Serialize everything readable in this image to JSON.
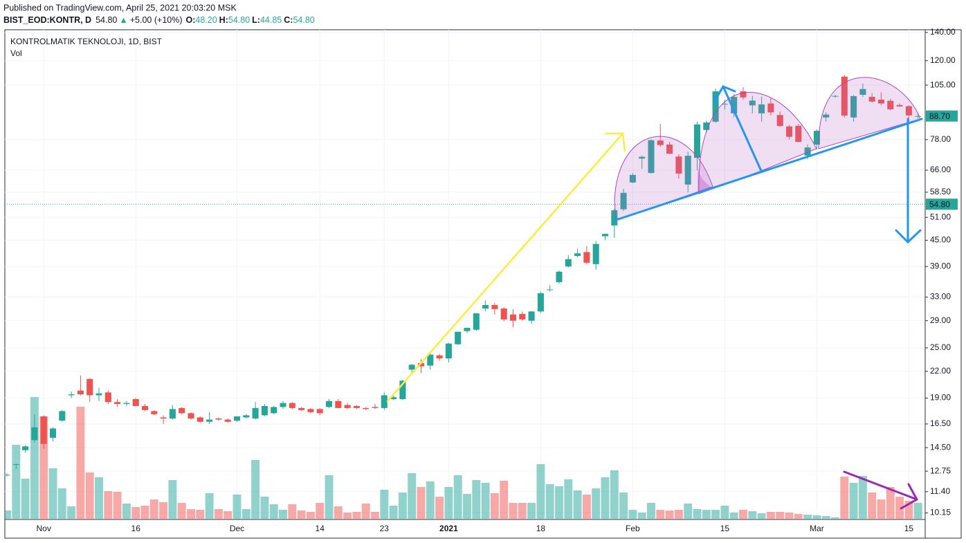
{
  "header": {
    "published": "Published on TradingView.com, April 25, 2021 20:03:20 MSK",
    "symbol": "BIST_EOD:KONTR, D",
    "price": "54.80",
    "arrow": "▲",
    "change": "+5.00 (+10%)",
    "ohlc": [
      [
        "O:",
        "48.20"
      ],
      [
        "H:",
        "54.80"
      ],
      [
        "L:",
        "44.85"
      ],
      [
        "C:",
        "54.80"
      ]
    ]
  },
  "chart_data": {
    "type": "candlestick",
    "title": "KONTROLMATIK TEKNOLOJI, 1D, BIST",
    "volume_label": "Vol",
    "up_color": "#26a69a",
    "down_color": "#ef5350",
    "log_scale": true,
    "grid": true,
    "categories": [
      null,
      null,
      null,
      null,
      "Nov",
      null,
      null,
      null,
      null,
      null,
      null,
      null,
      null,
      null,
      "16",
      null,
      null,
      null,
      null,
      null,
      null,
      null,
      null,
      null,
      null,
      "Dec",
      null,
      null,
      null,
      null,
      null,
      null,
      null,
      null,
      "14",
      null,
      null,
      null,
      null,
      null,
      null,
      "23",
      null,
      null,
      null,
      null,
      null,
      null,
      "2021",
      null,
      null,
      null,
      null,
      null,
      null,
      null,
      null,
      null,
      "18",
      null,
      null,
      null,
      null,
      null,
      null,
      null,
      null,
      null,
      "Feb",
      null,
      null,
      null,
      null,
      null,
      null,
      null,
      null,
      null,
      "15",
      null,
      null,
      null,
      null,
      null,
      null,
      null,
      null,
      null,
      "Mar",
      null,
      null,
      null,
      null,
      null,
      null,
      null,
      null,
      null,
      "15",
      null
    ],
    "open": [
      12.5,
      13.2,
      14.3,
      15.1,
      17.2,
      15.3,
      16.8,
      19.3,
      19.8,
      21.1,
      19.3,
      19.6,
      18.6,
      18.4,
      18.9,
      18.2,
      17.7,
      17.1,
      17.0,
      18.0,
      17.5,
      17.1,
      16.7,
      17.0,
      16.9,
      16.8,
      17.1,
      17.0,
      17.3,
      17.5,
      18.1,
      18.5,
      18.0,
      17.9,
      17.9,
      18.1,
      18.7,
      18.3,
      18.2,
      18.0,
      18.1,
      18.0,
      18.9,
      18.9,
      22.2,
      23.0,
      22.7,
      24.0,
      23.6,
      25.5,
      27.4,
      27.6,
      31.0,
      31.6,
      31.0,
      30.0,
      30.1,
      29.0,
      30.5,
      34.3,
      35.8,
      39.0,
      41.3,
      42.2,
      39.5,
      46.0,
      48.8,
      53.3,
      61.7,
      70.3,
      65.0,
      77.6,
      75.9,
      71.1,
      61.0,
      70.6,
      82.2,
      86.0,
      94.5,
      90.0,
      101.5,
      94.0,
      90.0,
      95.0,
      89.2,
      83.8,
      84.1,
      71.5,
      75.9,
      88.0,
      98.9,
      110.0,
      88.0,
      99.6,
      98.5,
      97.0,
      96.4,
      94.2,
      93.6,
      88.7
    ],
    "high": [
      12.6,
      13.3,
      14.7,
      17.4,
      17.3,
      16.2,
      17.8,
      19.7,
      21.5,
      21.2,
      20.1,
      19.8,
      18.9,
      18.7,
      19.0,
      18.4,
      17.8,
      17.3,
      18.3,
      18.1,
      17.6,
      17.2,
      17.6,
      17.1,
      17.0,
      17.2,
      17.4,
      18.6,
      18.4,
      18.2,
      18.7,
      18.6,
      18.1,
      18.0,
      18.0,
      18.9,
      18.9,
      18.5,
      18.3,
      18.1,
      18.4,
      19.6,
      19.4,
      21.0,
      22.9,
      23.5,
      24.5,
      24.2,
      25.7,
      27.3,
      27.9,
      30.2,
      32.4,
      32.0,
      31.2,
      30.9,
      30.5,
      30.6,
      34.0,
      35.2,
      38.2,
      41.5,
      43.0,
      43.6,
      44.8,
      46.6,
      53.5,
      59.6,
      64.9,
      71.5,
      78.0,
      85.0,
      77.0,
      72.0,
      73.0,
      86.0,
      86.5,
      103.0,
      97.0,
      100.0,
      103.8,
      99.0,
      98.6,
      98.0,
      91.0,
      84.5,
      85.0,
      76.0,
      82.5,
      90.5,
      99.5,
      111.0,
      99.5,
      106.0,
      100.5,
      101.0,
      97.5,
      95.0,
      94.0,
      90.2
    ],
    "low": [
      12.4,
      12.9,
      14.1,
      14.9,
      14.4,
      15.0,
      16.7,
      19.0,
      19.3,
      18.6,
      18.7,
      18.4,
      18.1,
      18.2,
      18.2,
      17.7,
      17.3,
      16.5,
      16.9,
      17.4,
      16.9,
      16.6,
      16.5,
      16.8,
      16.6,
      16.7,
      17.0,
      16.9,
      17.2,
      17.4,
      17.9,
      17.9,
      17.7,
      17.5,
      17.3,
      18.0,
      18.0,
      17.9,
      17.9,
      17.8,
      17.9,
      17.8,
      18.8,
      18.8,
      21.7,
      21.8,
      22.2,
      23.3,
      23.1,
      25.4,
      27.1,
      27.4,
      30.5,
      30.0,
      28.9,
      28.0,
      29.0,
      28.5,
      30.3,
      34.0,
      35.5,
      38.8,
      41.0,
      39.5,
      38.3,
      45.0,
      45.6,
      52.8,
      61.5,
      66.5,
      64.8,
      75.0,
      72.0,
      63.0,
      58.4,
      66.0,
      81.0,
      85.5,
      92.0,
      88.0,
      97.0,
      90.0,
      86.0,
      89.0,
      83.5,
      78.0,
      76.8,
      70.0,
      74.0,
      86.0,
      98.0,
      88.0,
      86.0,
      98.5,
      95.5,
      94.0,
      91.5,
      93.2,
      86.0,
      87.5
    ],
    "close": [
      12.5,
      13.25,
      14.6,
      16.2,
      14.8,
      16.1,
      17.7,
      19.4,
      19.4,
      19.3,
      19.5,
      18.6,
      18.4,
      18.5,
      18.2,
      17.8,
      17.4,
      17.0,
      17.9,
      17.5,
      17.0,
      16.7,
      16.9,
      16.9,
      16.7,
      17.2,
      17.3,
      18.0,
      18.2,
      18.1,
      18.5,
      18.0,
      17.8,
      17.6,
      17.5,
      18.7,
      18.0,
      18.0,
      18.0,
      17.9,
      18.0,
      19.3,
      19.1,
      20.9,
      22.8,
      22.6,
      24.1,
      23.6,
      25.6,
      27.3,
      27.9,
      30.2,
      31.6,
      30.9,
      29.2,
      29.0,
      29.2,
      30.5,
      33.7,
      34.4,
      37.9,
      40.6,
      41.9,
      39.8,
      44.1,
      46.6,
      53.0,
      58.3,
      64.3,
      71.0,
      77.7,
      75.7,
      72.2,
      64.8,
      71.4,
      84.7,
      85.6,
      101.5,
      94.8,
      98.5,
      98.2,
      96.5,
      94.5,
      90.5,
      84.0,
      79.2,
      77.0,
      74.7,
      81.8,
      89.4,
      99.0,
      88.9,
      98.9,
      102.8,
      96.0,
      95.0,
      92.0,
      93.5,
      89.0,
      88.7
    ],
    "volume": [
      12,
      107,
      58,
      176,
      148,
      73,
      44,
      18,
      162,
      67,
      60,
      40,
      39,
      22,
      17,
      19,
      28,
      24,
      56,
      23,
      14,
      13,
      37,
      14,
      11,
      35,
      14,
      85,
      32,
      21,
      13,
      21,
      12,
      10,
      23,
      63,
      18,
      9,
      10,
      22,
      10,
      42,
      19,
      38,
      66,
      46,
      54,
      32,
      46,
      63,
      36,
      56,
      52,
      37,
      55,
      23,
      23,
      23,
      79,
      50,
      47,
      57,
      41,
      35,
      44,
      60,
      70,
      38,
      13,
      9,
      23,
      13,
      12,
      13,
      22,
      14,
      13,
      13,
      19,
      9,
      13,
      11,
      8,
      10,
      10,
      9,
      7,
      6,
      5,
      4,
      2,
      61,
      52,
      62,
      38,
      28,
      46,
      32,
      26,
      23
    ],
    "ylim": [
      9.83,
      142.1
    ],
    "yticks": [
      {
        "value": 140,
        "label": "140.00"
      },
      {
        "value": 120,
        "label": "120.00"
      },
      {
        "value": 105,
        "label": "105.00"
      },
      {
        "value": 78,
        "label": "78.00"
      },
      {
        "value": 66,
        "label": "66.00"
      },
      {
        "value": 58.5,
        "label": "58.50"
      },
      {
        "value": 51,
        "label": "51.00"
      },
      {
        "value": 45,
        "label": "45.00"
      },
      {
        "value": 39,
        "label": "39.00"
      },
      {
        "value": 33,
        "label": "33.00"
      },
      {
        "value": 29,
        "label": "29.00"
      },
      {
        "value": 25,
        "label": "25.00"
      },
      {
        "value": 22,
        "label": "22.00"
      },
      {
        "value": 19,
        "label": "19.00"
      },
      {
        "value": 16.5,
        "label": "16.50"
      },
      {
        "value": 14.5,
        "label": "14.50"
      },
      {
        "value": 12.75,
        "label": "12.75"
      },
      {
        "value": 11.4,
        "label": "11.40"
      },
      {
        "value": 10.15,
        "label": "10.15"
      }
    ],
    "close_label": {
      "value": 88.7,
      "label": "88.70"
    },
    "last_price": {
      "value": 54.8,
      "label": "54.80"
    }
  }
}
